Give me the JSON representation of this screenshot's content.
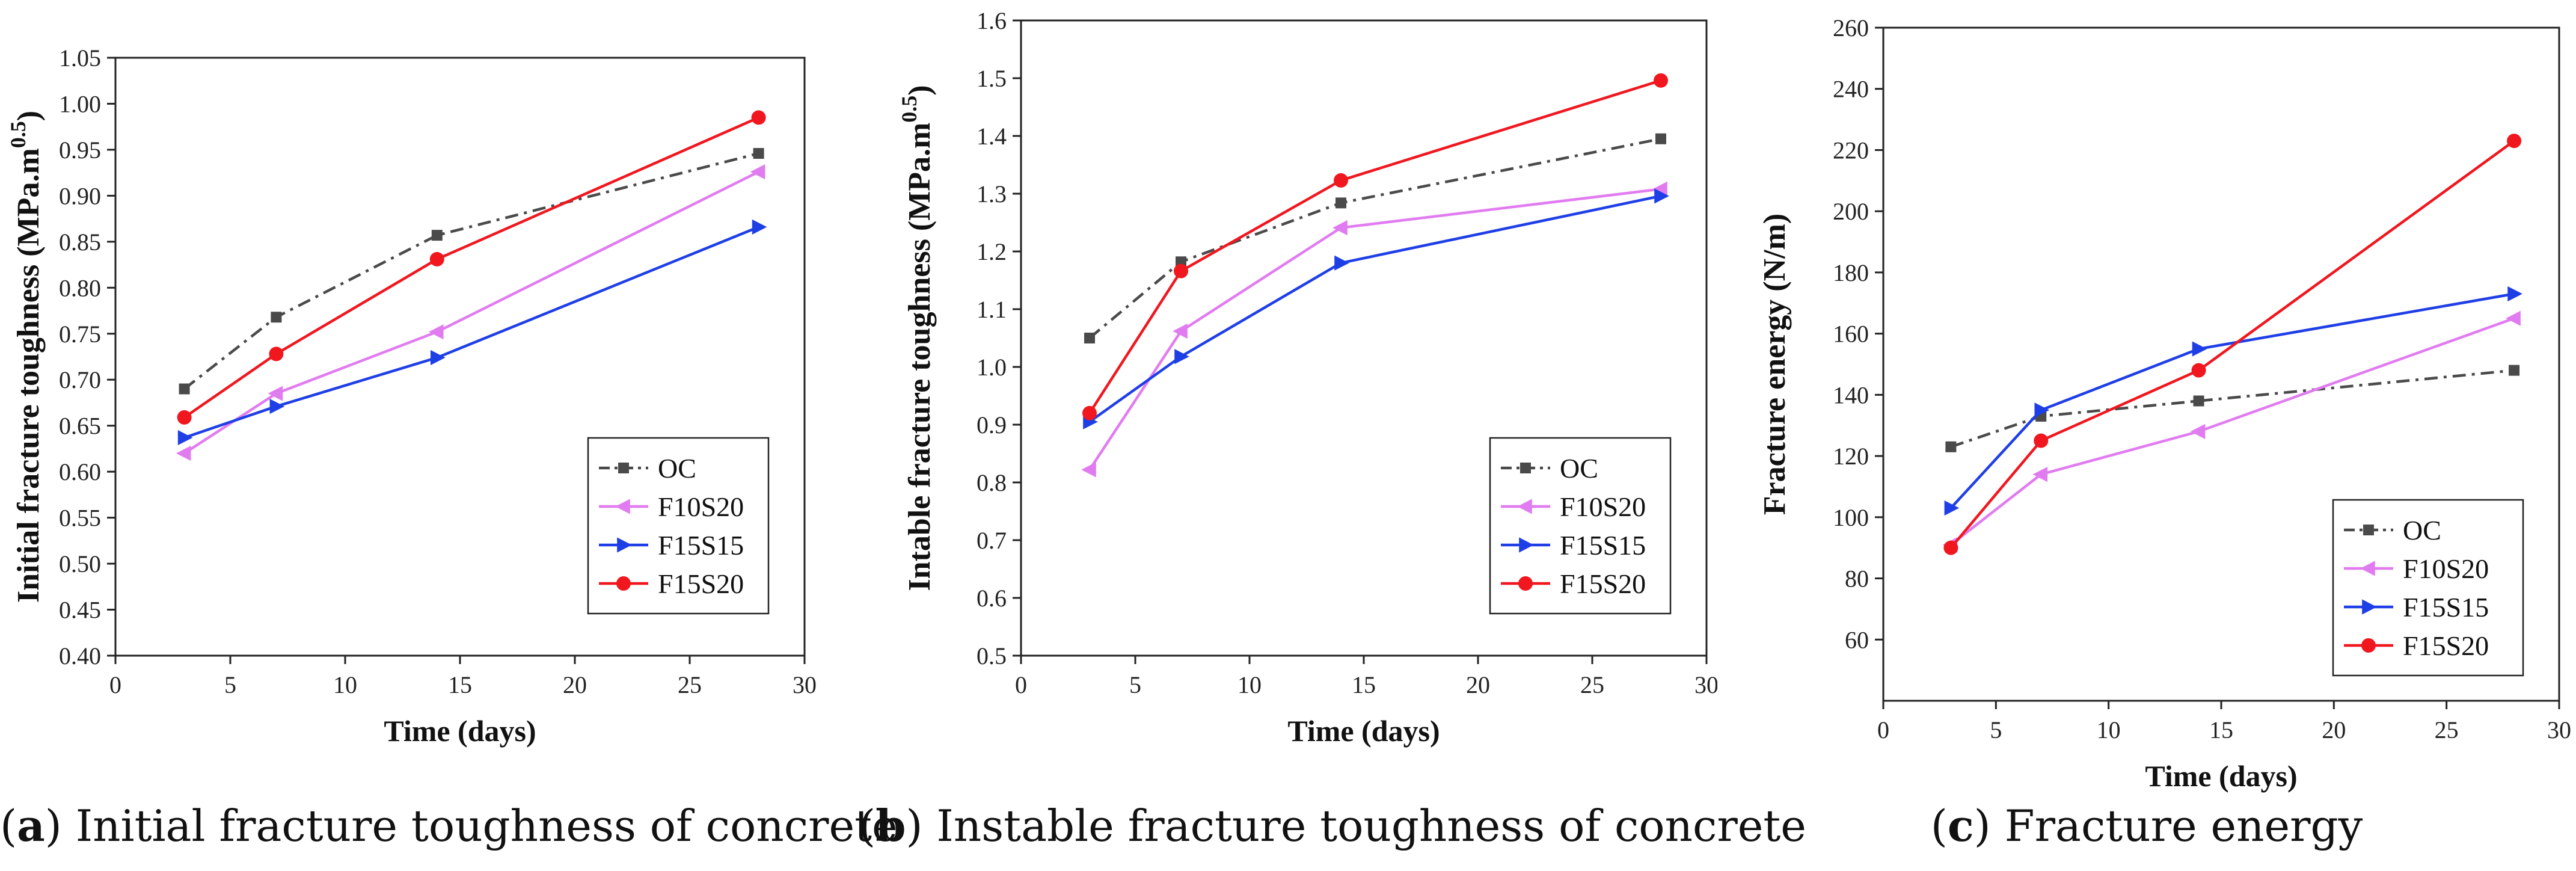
{
  "chart_data": [
    {
      "panel": "a",
      "type": "line",
      "title": "",
      "xlabel": "Time (days)",
      "ylabel": "Initial fracture toughness (MPa.m",
      "ylabel_sup": "0.5",
      "ylabel_close": ")",
      "xlim": [
        0,
        30
      ],
      "ylim": [
        0.4,
        1.05
      ],
      "xticks": [
        "0",
        "5",
        "10",
        "15",
        "20",
        "25",
        "30"
      ],
      "yticks": [
        "0.40",
        "0.45",
        "0.50",
        "0.55",
        "0.60",
        "0.65",
        "0.70",
        "0.75",
        "0.80",
        "0.85",
        "0.90",
        "0.95",
        "1.00",
        "1.05"
      ],
      "legend_position": "bottom-right",
      "x": [
        3,
        7,
        14,
        28
      ],
      "series": [
        {
          "name": "OC",
          "values": [
            0.69,
            0.768,
            0.857,
            0.946
          ],
          "color": "#4a4a4a",
          "marker": "square",
          "dash": "dashdot"
        },
        {
          "name": "F10S20",
          "values": [
            0.62,
            0.685,
            0.752,
            0.926
          ],
          "color": "#e17cf0",
          "marker": "triangle-left",
          "dash": "solid"
        },
        {
          "name": "F15S15",
          "values": [
            0.637,
            0.671,
            0.724,
            0.866
          ],
          "color": "#1f3fe6",
          "marker": "triangle-right",
          "dash": "solid"
        },
        {
          "name": "F15S20",
          "values": [
            0.659,
            0.728,
            0.831,
            0.985
          ],
          "color": "#f0171f",
          "marker": "circle",
          "dash": "solid"
        }
      ]
    },
    {
      "panel": "b",
      "type": "line",
      "title": "",
      "xlabel": "Time (days)",
      "ylabel": "Intable fracture toughness (MPa.m",
      "ylabel_sup": "0.5",
      "ylabel_close": ")",
      "xlim": [
        0,
        30
      ],
      "ylim": [
        0.5,
        1.6
      ],
      "xticks": [
        "0",
        "5",
        "10",
        "15",
        "20",
        "25",
        "30"
      ],
      "yticks": [
        "0.5",
        "0.6",
        "0.7",
        "0.8",
        "0.9",
        "1.0",
        "1.1",
        "1.2",
        "1.3",
        "1.4",
        "1.5",
        "1.6"
      ],
      "legend_position": "bottom-right",
      "x": [
        3,
        7,
        14,
        28
      ],
      "series": [
        {
          "name": "OC",
          "values": [
            1.05,
            1.182,
            1.284,
            1.395
          ],
          "color": "#4a4a4a",
          "marker": "square",
          "dash": "dashdot"
        },
        {
          "name": "F10S20",
          "values": [
            0.822,
            1.062,
            1.241,
            1.308
          ],
          "color": "#e17cf0",
          "marker": "triangle-left",
          "dash": "solid"
        },
        {
          "name": "F15S15",
          "values": [
            0.905,
            1.018,
            1.18,
            1.296
          ],
          "color": "#1f3fe6",
          "marker": "triangle-right",
          "dash": "solid"
        },
        {
          "name": "F15S20",
          "values": [
            0.92,
            1.166,
            1.323,
            1.496
          ],
          "color": "#f0171f",
          "marker": "circle",
          "dash": "solid"
        }
      ]
    },
    {
      "panel": "c",
      "type": "line",
      "title": "",
      "xlabel": "Time (days)",
      "ylabel": "Fracture energy (N/m)",
      "ylabel_sup": "",
      "ylabel_close": "",
      "xlim": [
        0,
        30
      ],
      "ylim": [
        40,
        260
      ],
      "xticks": [
        "0",
        "5",
        "10",
        "15",
        "20",
        "25",
        "30"
      ],
      "yticks": [
        "60",
        "80",
        "100",
        "120",
        "140",
        "160",
        "180",
        "200",
        "220",
        "240",
        "260"
      ],
      "legend_position": "bottom-right",
      "x": [
        3,
        7,
        14,
        28
      ],
      "series": [
        {
          "name": "OC",
          "values": [
            123,
            133,
            138,
            148
          ],
          "color": "#4a4a4a",
          "marker": "square",
          "dash": "dashdot"
        },
        {
          "name": "F10S20",
          "values": [
            91,
            114,
            128,
            165
          ],
          "color": "#e17cf0",
          "marker": "triangle-left",
          "dash": "solid"
        },
        {
          "name": "F15S15",
          "values": [
            103,
            135,
            155,
            173
          ],
          "color": "#1f3fe6",
          "marker": "triangle-right",
          "dash": "solid"
        },
        {
          "name": "F15S20",
          "values": [
            90,
            125,
            148,
            223
          ],
          "color": "#f0171f",
          "marker": "circle",
          "dash": "solid"
        }
      ]
    }
  ],
  "captions": [
    {
      "label": "a",
      "text": " Initial fracture toughness of concrete"
    },
    {
      "label": "b",
      "text": " Instable fracture toughness of concrete"
    },
    {
      "label": "c",
      "text": " Fracture energy"
    }
  ]
}
